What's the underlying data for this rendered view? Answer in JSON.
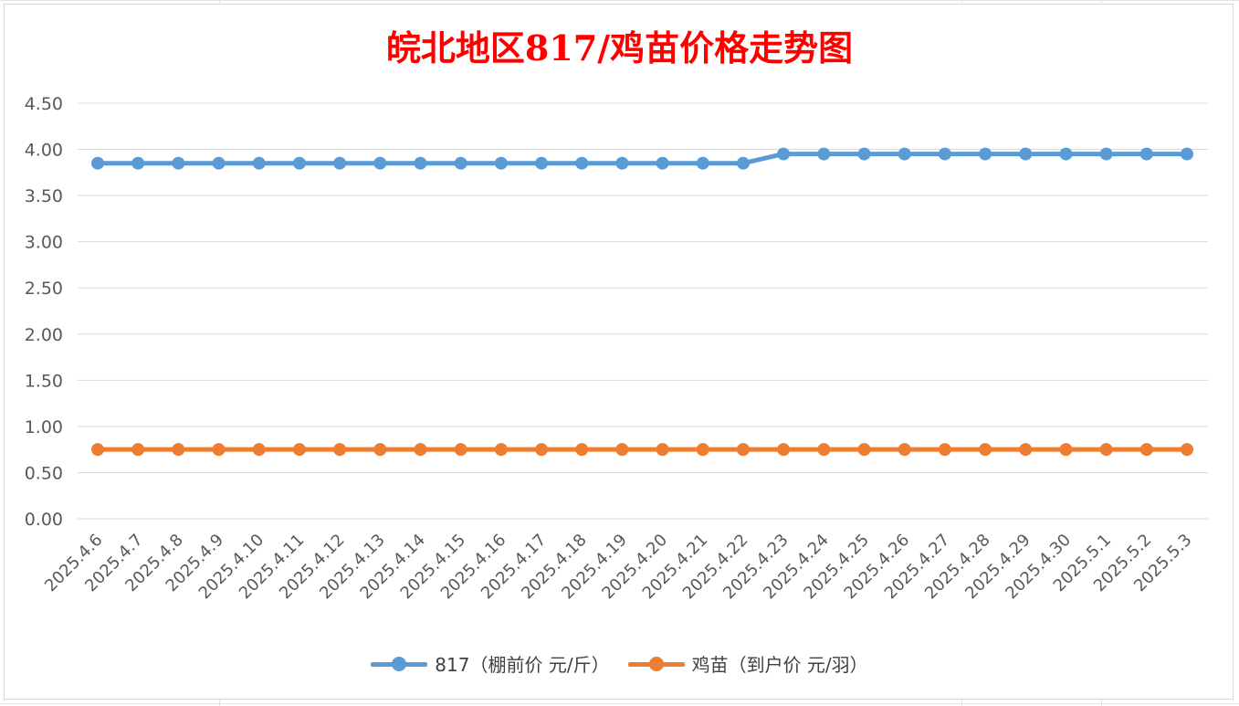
{
  "title": "皖北地区817/鸡苗价格走势图",
  "colors": {
    "title": "#ff0000",
    "series_817": "#5b9bd5",
    "series_chick": "#ed7d31",
    "grid": "#d9d9d9",
    "axis_text": "#595959"
  },
  "chart_data": {
    "type": "line",
    "title": "皖北地区817/鸡苗价格走势图",
    "xlabel": "",
    "ylabel": "",
    "ylim": [
      0,
      4.5
    ],
    "yticks": [
      "0.00",
      "0.50",
      "1.00",
      "1.50",
      "2.00",
      "2.50",
      "3.00",
      "3.50",
      "4.00",
      "4.50"
    ],
    "grid": true,
    "legend_position": "bottom",
    "categories": [
      "2025.4.6",
      "2025.4.7",
      "2025.4.8",
      "2025.4.9",
      "2025.4.10",
      "2025.4.11",
      "2025.4.12",
      "2025.4.13",
      "2025.4.14",
      "2025.4.15",
      "2025.4.16",
      "2025.4.17",
      "2025.4.18",
      "2025.4.19",
      "2025.4.20",
      "2025.4.21",
      "2025.4.22",
      "2025.4.23",
      "2025.4.24",
      "2025.4.25",
      "2025.4.26",
      "2025.4.27",
      "2025.4.28",
      "2025.4.29",
      "2025.4.30",
      "2025.5.1",
      "2025.5.2",
      "2025.5.3"
    ],
    "series": [
      {
        "name": "817（棚前价 元/斤）",
        "color": "#5b9bd5",
        "values": [
          3.85,
          3.85,
          3.85,
          3.85,
          3.85,
          3.85,
          3.85,
          3.85,
          3.85,
          3.85,
          3.85,
          3.85,
          3.85,
          3.85,
          3.85,
          3.85,
          3.85,
          3.95,
          3.95,
          3.95,
          3.95,
          3.95,
          3.95,
          3.95,
          3.95,
          3.95,
          3.95,
          3.95
        ]
      },
      {
        "name": "鸡苗（到户价 元/羽）",
        "color": "#ed7d31",
        "values": [
          0.75,
          0.75,
          0.75,
          0.75,
          0.75,
          0.75,
          0.75,
          0.75,
          0.75,
          0.75,
          0.75,
          0.75,
          0.75,
          0.75,
          0.75,
          0.75,
          0.75,
          0.75,
          0.75,
          0.75,
          0.75,
          0.75,
          0.75,
          0.75,
          0.75,
          0.75,
          0.75,
          0.75
        ]
      }
    ]
  }
}
